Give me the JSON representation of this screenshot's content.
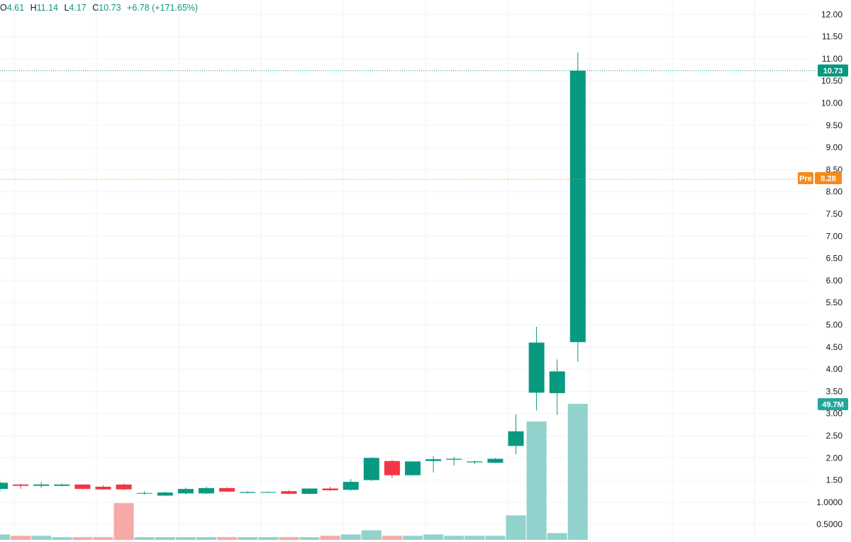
{
  "ohlc": {
    "o_label": "O",
    "o": "4.61",
    "h_label": "H",
    "h": "11.14",
    "l_label": "L",
    "l": "4.17",
    "c_label": "C",
    "c": "10.73",
    "change": "+6.78 (+171.65%)"
  },
  "colors": {
    "up": "#089981",
    "down": "#f23645",
    "vol_up": "#92d2cc",
    "vol_down": "#f7a9a7",
    "premarket": "#f68a1a",
    "grid": "#f0f3fa"
  },
  "tags": {
    "last_price": "10.73",
    "pre_label": "Pre",
    "pre_price": "8.28",
    "volume": "49.7M"
  },
  "chart_data": {
    "type": "candlestick",
    "y_axis": {
      "range": [
        0.3,
        12.2
      ],
      "ticks": [
        "12.00",
        "11.50",
        "11.00",
        "10.50",
        "10.00",
        "9.50",
        "9.00",
        "8.50",
        "8.00",
        "7.50",
        "7.00",
        "6.50",
        "6.00",
        "5.50",
        "5.00",
        "4.50",
        "4.00",
        "3.50",
        "3.00",
        "2.50",
        "2.00",
        "1.50",
        "1.0000",
        "0.5000"
      ]
    },
    "last_price": 10.73,
    "premarket_price": 8.28,
    "last_volume": "49.7M",
    "candles": [
      {
        "o": 1.3,
        "h": 1.47,
        "l": 1.25,
        "c": 1.44
      },
      {
        "o": 1.4,
        "h": 1.42,
        "l": 1.3,
        "c": 1.37
      },
      {
        "o": 1.37,
        "h": 1.46,
        "l": 1.32,
        "c": 1.4
      },
      {
        "o": 1.37,
        "h": 1.42,
        "l": 1.36,
        "c": 1.4
      },
      {
        "o": 1.4,
        "h": 1.4,
        "l": 1.29,
        "c": 1.3
      },
      {
        "o": 1.35,
        "h": 1.38,
        "l": 1.28,
        "c": 1.29
      },
      {
        "o": 1.4,
        "h": 1.42,
        "l": 1.28,
        "c": 1.29
      },
      {
        "o": 1.2,
        "h": 1.25,
        "l": 1.17,
        "c": 1.21
      },
      {
        "o": 1.15,
        "h": 1.24,
        "l": 1.14,
        "c": 1.22
      },
      {
        "o": 1.2,
        "h": 1.33,
        "l": 1.18,
        "c": 1.3
      },
      {
        "o": 1.2,
        "h": 1.35,
        "l": 1.18,
        "c": 1.32
      },
      {
        "o": 1.32,
        "h": 1.34,
        "l": 1.23,
        "c": 1.24
      },
      {
        "o": 1.21,
        "h": 1.25,
        "l": 1.2,
        "c": 1.23
      },
      {
        "o": 1.22,
        "h": 1.24,
        "l": 1.21,
        "c": 1.23
      },
      {
        "o": 1.25,
        "h": 1.27,
        "l": 1.18,
        "c": 1.19
      },
      {
        "o": 1.19,
        "h": 1.31,
        "l": 1.18,
        "c": 1.31
      },
      {
        "o": 1.31,
        "h": 1.35,
        "l": 1.25,
        "c": 1.27
      },
      {
        "o": 1.28,
        "h": 1.52,
        "l": 1.26,
        "c": 1.46
      },
      {
        "o": 1.5,
        "h": 2.02,
        "l": 1.48,
        "c": 2.0
      },
      {
        "o": 1.93,
        "h": 1.95,
        "l": 1.55,
        "c": 1.61
      },
      {
        "o": 1.61,
        "h": 1.92,
        "l": 1.6,
        "c": 1.92
      },
      {
        "o": 1.93,
        "h": 2.04,
        "l": 1.67,
        "c": 1.97
      },
      {
        "o": 1.96,
        "h": 2.02,
        "l": 1.83,
        "c": 1.98
      },
      {
        "o": 1.9,
        "h": 1.94,
        "l": 1.86,
        "c": 1.92
      },
      {
        "o": 1.89,
        "h": 2.0,
        "l": 1.88,
        "c": 1.98
      },
      {
        "o": 2.27,
        "h": 2.98,
        "l": 2.08,
        "c": 2.6
      },
      {
        "o": 3.47,
        "h": 4.96,
        "l": 3.07,
        "c": 4.6
      },
      {
        "o": 3.46,
        "h": 4.22,
        "l": 2.97,
        "c": 3.95
      },
      {
        "o": 4.61,
        "h": 11.14,
        "l": 4.17,
        "c": 10.73
      }
    ],
    "volume_rel": [
      0.04,
      0.03,
      0.03,
      0.02,
      0.02,
      0.02,
      0.27,
      0.02,
      0.02,
      0.02,
      0.02,
      0.02,
      0.02,
      0.02,
      0.02,
      0.02,
      0.03,
      0.04,
      0.07,
      0.03,
      0.03,
      0.04,
      0.03,
      0.03,
      0.03,
      0.18,
      0.87,
      0.05,
      1.0
    ]
  }
}
